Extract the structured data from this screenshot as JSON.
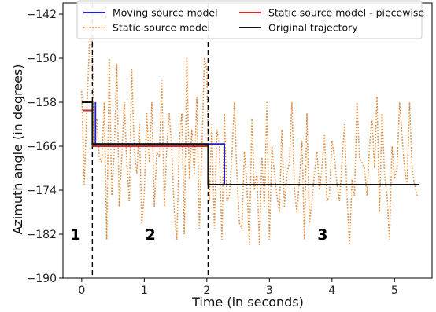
{
  "chart_data": {
    "type": "line",
    "xlabel": "Time (in seconds)",
    "ylabel": "Azimuth angle (in degrees)",
    "xlim": [
      -0.3,
      5.6
    ],
    "ylim": [
      -190,
      -140
    ],
    "xticks": [
      0,
      1,
      2,
      3,
      4,
      5
    ],
    "yticks": [
      -142,
      -150,
      -158,
      -166,
      -174,
      -182,
      -190
    ],
    "grid": false,
    "legend_position": "top",
    "legend": [
      {
        "name": "Moving source model",
        "color": "#1f1fcc",
        "style": "solid"
      },
      {
        "name": "Static source model - piecewise",
        "color": "#d62728",
        "style": "solid"
      },
      {
        "name": "Static source model",
        "color": "#e08a3c",
        "style": "dotted"
      },
      {
        "name": "Original trajectory",
        "color": "#111111",
        "style": "solid"
      }
    ],
    "dashed_vertical_lines": [
      0.17,
      2.02
    ],
    "region_labels": [
      {
        "text": "1",
        "x": -0.1,
        "y": -182
      },
      {
        "text": "2",
        "x": 1.1,
        "y": -182
      },
      {
        "text": "3",
        "x": 3.85,
        "y": -182
      }
    ],
    "series": [
      {
        "name": "Original trajectory",
        "color": "#111111",
        "x": [
          0.0,
          0.17,
          0.17,
          2.02,
          2.02,
          5.4
        ],
        "y": [
          -158.0,
          -158.0,
          -165.6,
          -165.6,
          -173.0,
          -173.0
        ]
      },
      {
        "name": "Moving source model",
        "color": "#1f1fcc",
        "x": [
          0.22,
          0.22,
          2.28,
          2.28,
          5.4
        ],
        "y": [
          -158.0,
          -165.6,
          -165.6,
          -173.0,
          -173.0
        ]
      },
      {
        "name": "Static source model - piecewise",
        "color": "#d62728",
        "segments": [
          {
            "x": [
              0.02,
              0.17
            ],
            "y": [
              -159.5,
              -159.5
            ]
          },
          {
            "x": [
              0.17,
              2.02
            ],
            "y": [
              -166.0,
              -166.0
            ]
          },
          {
            "x": [
              2.02,
              5.4
            ],
            "y": [
              -173.0,
              -173.0
            ]
          }
        ]
      },
      {
        "name": "Static source model",
        "color": "#e08a3c",
        "x": [
          0.0,
          0.04,
          0.08,
          0.12,
          0.16,
          0.2,
          0.24,
          0.28,
          0.32,
          0.36,
          0.4,
          0.44,
          0.48,
          0.52,
          0.56,
          0.6,
          0.64,
          0.68,
          0.72,
          0.76,
          0.8,
          0.84,
          0.88,
          0.92,
          0.96,
          1.0,
          1.04,
          1.08,
          1.12,
          1.16,
          1.2,
          1.24,
          1.28,
          1.32,
          1.36,
          1.4,
          1.44,
          1.48,
          1.52,
          1.56,
          1.6,
          1.64,
          1.68,
          1.72,
          1.76,
          1.8,
          1.84,
          1.88,
          1.92,
          1.96,
          2.0,
          2.04,
          2.08,
          2.12,
          2.16,
          2.2,
          2.24,
          2.28,
          2.32,
          2.36,
          2.4,
          2.44,
          2.48,
          2.52,
          2.56,
          2.6,
          2.64,
          2.68,
          2.72,
          2.76,
          2.8,
          2.84,
          2.88,
          2.92,
          2.96,
          3.0,
          3.04,
          3.08,
          3.12,
          3.16,
          3.2,
          3.24,
          3.28,
          3.32,
          3.36,
          3.4,
          3.44,
          3.48,
          3.52,
          3.56,
          3.6,
          3.64,
          3.68,
          3.72,
          3.76,
          3.8,
          3.84,
          3.88,
          3.92,
          3.96,
          4.0,
          4.04,
          4.08,
          4.12,
          4.16,
          4.2,
          4.24,
          4.28,
          4.32,
          4.36,
          4.4,
          4.44,
          4.48,
          4.52,
          4.56,
          4.6,
          4.64,
          4.68,
          4.72,
          4.76,
          4.8,
          4.84,
          4.88,
          4.92,
          4.96,
          5.0,
          5.04,
          5.08,
          5.12,
          5.16,
          5.2,
          5.24,
          5.28,
          5.32,
          5.36
        ],
        "y": [
          -156,
          -173,
          -160,
          -148,
          -144,
          -166,
          -161,
          -168,
          -169,
          -158,
          -183,
          -150,
          -175,
          -167,
          -151,
          -177,
          -168,
          -158,
          -169,
          -176,
          -152,
          -167,
          -171,
          -162,
          -180,
          -175,
          -160,
          -169,
          -158,
          -177,
          -167,
          -168,
          -154,
          -177,
          -166,
          -160,
          -167,
          -178,
          -183,
          -165,
          -160,
          -182,
          -150,
          -172,
          -163,
          -171,
          -157,
          -181,
          -167,
          -150,
          -152,
          -176,
          -162,
          -181,
          -163,
          -166,
          -183,
          -160,
          -176,
          -175,
          -168,
          -158,
          -171,
          -180,
          -181,
          -167,
          -173,
          -184,
          -161,
          -174,
          -171,
          -184,
          -168,
          -177,
          -158,
          -183,
          -166,
          -171,
          -175,
          -178,
          -163,
          -177,
          -171,
          -169,
          -158,
          -174,
          -178,
          -172,
          -165,
          -183,
          -160,
          -180,
          -176,
          -171,
          -167,
          -174,
          -170,
          -164,
          -176,
          -175,
          -165,
          -168,
          -173,
          -176,
          -169,
          -162,
          -175,
          -184,
          -172,
          -175,
          -158,
          -168,
          -169,
          -170,
          -175,
          -166,
          -161,
          -170,
          -157,
          -178,
          -160,
          -171,
          -175,
          -183,
          -166,
          -172,
          -170,
          -158,
          -164,
          -170,
          -173,
          -158,
          -170,
          -173,
          -175
        ]
      }
    ]
  }
}
